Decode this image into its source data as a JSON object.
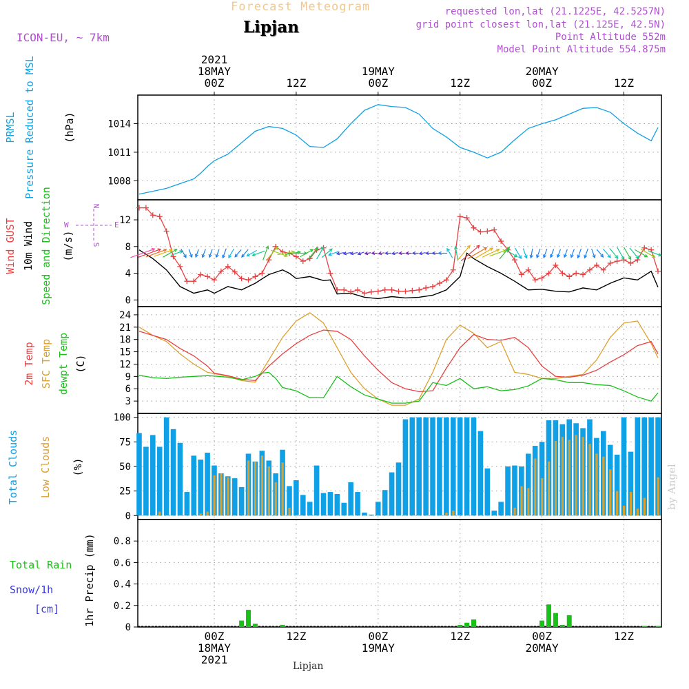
{
  "header": {
    "title": "Forecast Meteogram",
    "location": "Lipjan",
    "model": "ICON-EU, ~ 7km",
    "requested": "requested lon,lat (21.1225E, 42.5257N)",
    "grid": "grid point closest lon,lat (21.125E, 42.5N)",
    "point_alt": "Point Altitude 552m",
    "model_alt": "Model Point Altitude 554.875m"
  },
  "footer": {
    "location": "Lipjan",
    "credit": "by Angel"
  },
  "colors": {
    "blue": "#0fa0e6",
    "red": "#e84040",
    "orange": "#dca02e",
    "green": "#18c018",
    "purple": "#b050d0",
    "black": "#000000",
    "snow": "#3838e0",
    "title": "#f0c890"
  },
  "time_axis": {
    "top_labels": [
      {
        "lines": [
          "2021",
          "18MAY",
          "00Z"
        ],
        "h": 0
      },
      {
        "lines": [
          "12Z"
        ],
        "h": 12
      },
      {
        "lines": [
          "19MAY",
          "00Z"
        ],
        "h": 24
      },
      {
        "lines": [
          "12Z"
        ],
        "h": 36
      },
      {
        "lines": [
          "20MAY",
          "00Z"
        ],
        "h": 48
      },
      {
        "lines": [
          "12Z"
        ],
        "h": 60
      }
    ],
    "bottom_labels": [
      {
        "lines": [
          "00Z",
          "18MAY",
          "2021"
        ],
        "h": 0
      },
      {
        "lines": [
          "12Z"
        ],
        "h": 12
      },
      {
        "lines": [
          "00Z",
          "19MAY"
        ],
        "h": 24
      },
      {
        "lines": [
          "12Z"
        ],
        "h": 36
      },
      {
        "lines": [
          "00Z",
          "20MAY"
        ],
        "h": 48
      },
      {
        "lines": [
          "12Z"
        ],
        "h": 60
      }
    ],
    "range_hours": [
      -11.2,
      65.5
    ]
  },
  "panels": [
    {
      "id": "pressure",
      "labels": [
        {
          "text": "PRMSL",
          "color": "blue"
        },
        {
          "text": "Pressure Reduced to MSL",
          "color": "blue"
        }
      ],
      "unit": "(hPa)",
      "yticks": [
        "1008",
        "1011",
        "1014"
      ],
      "ylim": [
        1006,
        1017
      ]
    },
    {
      "id": "wind",
      "labels": [
        {
          "text": "Wind GUST",
          "color": "red"
        },
        {
          "text": "10m Wind",
          "color": "black"
        },
        {
          "text": "Speed and Direction",
          "color": "green"
        }
      ],
      "unit": "(m/s)",
      "yticks": [
        "0",
        "4",
        "8",
        "12"
      ],
      "ylim": [
        -1,
        15
      ],
      "compass": {
        "n": "N",
        "s": "S",
        "e": "E",
        "w": "W"
      }
    },
    {
      "id": "temp",
      "labels": [
        {
          "text": "2m Temp",
          "color": "red"
        },
        {
          "text": "SFC Temp",
          "color": "orange"
        },
        {
          "text": "dewpt Temp",
          "color": "green"
        }
      ],
      "unit": "(C)",
      "yticks": [
        "3",
        "6",
        "9",
        "12",
        "15",
        "18",
        "21",
        "24"
      ],
      "ylim": [
        0,
        26
      ]
    },
    {
      "id": "clouds",
      "labels": [
        {
          "text": "Total Clouds",
          "color": "blue"
        },
        {
          "text": "Low Clouds",
          "color": "orange"
        }
      ],
      "unit": "(%)",
      "yticks": [
        "0",
        "25",
        "50",
        "75",
        "100"
      ],
      "ylim": [
        -4,
        104
      ]
    },
    {
      "id": "precip",
      "labels": [],
      "unit": "1hr Precip (mm)",
      "yticks": [
        "0",
        "0.2",
        "0.4",
        "0.6",
        "0.8"
      ],
      "ylim": [
        0,
        1.0
      ],
      "side_labels": {
        "rain": "Total  Rain",
        "snow": "Snow/1h",
        "snow_unit": "[cm]"
      }
    }
  ],
  "chart_data": {
    "type": "line",
    "x_units": "hours from 2021-05-18 00Z",
    "pressure_hpa": {
      "x": [
        -11,
        -9,
        -7,
        -5,
        -3,
        -2,
        -1,
        0,
        2,
        4,
        6,
        8,
        10,
        12,
        14,
        16,
        18,
        20,
        22,
        24,
        26,
        28,
        30,
        32,
        34,
        36,
        38,
        40,
        42,
        44,
        46,
        48,
        50,
        52,
        54,
        56,
        58,
        60,
        62,
        64,
        65
      ],
      "values": [
        1006.6,
        1006.9,
        1007.2,
        1007.7,
        1008.2,
        1008.8,
        1009.5,
        1010.1,
        1010.8,
        1012.0,
        1013.2,
        1013.7,
        1013.5,
        1012.8,
        1011.6,
        1011.5,
        1012.4,
        1014.0,
        1015.4,
        1016.0,
        1015.8,
        1015.7,
        1015.0,
        1013.5,
        1012.6,
        1011.5,
        1011.0,
        1010.4,
        1011.0,
        1012.3,
        1013.5,
        1014.0,
        1014.4,
        1015.0,
        1015.6,
        1015.7,
        1015.2,
        1014.0,
        1013.0,
        1012.2,
        1013.6
      ]
    },
    "wind_speed_ms": {
      "x": [
        -11,
        -9,
        -7,
        -5,
        -3,
        -1,
        0,
        2,
        4,
        6,
        8,
        10,
        11,
        12,
        14,
        16,
        17,
        18,
        20,
        22,
        24,
        26,
        28,
        30,
        32,
        34,
        36,
        37,
        38,
        40,
        42,
        44,
        46,
        48,
        50,
        52,
        54,
        56,
        58,
        60,
        62,
        64,
        65
      ],
      "values": [
        7.5,
        6.2,
        4.5,
        2.0,
        1.0,
        1.5,
        1.0,
        2.0,
        1.5,
        2.5,
        3.8,
        4.5,
        4.0,
        3.2,
        3.5,
        2.9,
        3.0,
        0.9,
        1.0,
        0.4,
        0.2,
        0.5,
        0.3,
        0.4,
        0.7,
        1.5,
        3.5,
        7.0,
        6.2,
        5.0,
        4.0,
        2.8,
        1.5,
        1.6,
        1.3,
        1.2,
        1.8,
        1.5,
        2.5,
        3.3,
        3.0,
        4.3,
        1.9
      ]
    },
    "gust_ms": {
      "x": [
        -11,
        -10,
        -9,
        -8,
        -7,
        -6,
        -5,
        -4,
        -3,
        -2,
        -1,
        0,
        1,
        2,
        3,
        4,
        5,
        6,
        7,
        8,
        9,
        10,
        11,
        12,
        13,
        14,
        15,
        16,
        17,
        18,
        19,
        20,
        21,
        22,
        23,
        24,
        25,
        26,
        27,
        28,
        29,
        30,
        31,
        32,
        33,
        34,
        35,
        36,
        37,
        38,
        39,
        40,
        41,
        42,
        43,
        44,
        45,
        46,
        47,
        48,
        49,
        50,
        51,
        52,
        53,
        54,
        55,
        56,
        57,
        58,
        59,
        60,
        61,
        62,
        63,
        64,
        65
      ],
      "values": [
        13.8,
        13.8,
        12.7,
        12.5,
        10.3,
        6.5,
        5.0,
        2.8,
        2.8,
        3.8,
        3.5,
        3.0,
        4.3,
        5.0,
        4.2,
        3.2,
        3.0,
        3.5,
        4.0,
        6.0,
        8.0,
        7.2,
        7.0,
        6.5,
        5.8,
        6.2,
        7.5,
        7.8,
        4.0,
        1.5,
        1.5,
        1.2,
        1.5,
        1.0,
        1.2,
        1.3,
        1.5,
        1.5,
        1.3,
        1.3,
        1.4,
        1.5,
        1.8,
        2.0,
        2.5,
        3.0,
        4.5,
        12.5,
        12.3,
        10.8,
        10.2,
        10.3,
        10.5,
        8.8,
        7.5,
        6.0,
        3.8,
        4.5,
        3.0,
        3.3,
        4.0,
        5.2,
        4.0,
        3.5,
        4.0,
        3.8,
        4.5,
        5.2,
        4.5,
        5.5,
        5.8,
        6.0,
        5.5,
        6.0,
        7.8,
        7.5,
        4.3
      ]
    },
    "wind_direction": {
      "x": [
        -10.5,
        -9.5,
        -8.5,
        -7.5,
        -6.5,
        -5.5,
        -4.5,
        -3.5,
        -2.5,
        -1.5,
        -0.5,
        0.5,
        1.5,
        2.5,
        3.5,
        4.5,
        5.5,
        6.5,
        7.5,
        8.5,
        9.5,
        10.5,
        11.5,
        12.5,
        13.5,
        14.5,
        15.5,
        16.5,
        17.5,
        18.5,
        19.5,
        20.5,
        21.5,
        22.5,
        23.5,
        24.5,
        25.5,
        26.5,
        27.5,
        28.5,
        29.5,
        30.5,
        31.5,
        32.5,
        33.5,
        34.5,
        35.5,
        36.5,
        37.5,
        38.5,
        39.5,
        40.5,
        41.5,
        42.5,
        43.5,
        44.5,
        45.5,
        46.5,
        47.5,
        48.5,
        49.5,
        50.5,
        51.5,
        52.5,
        53.5,
        54.5,
        55.5,
        56.5,
        57.5,
        58.5,
        59.5,
        60.5,
        61.5,
        62.5,
        63.5,
        64.5
      ],
      "deg": [
        250,
        250,
        250,
        250,
        240,
        250,
        330,
        340,
        20,
        20,
        20,
        20,
        20,
        30,
        40,
        40,
        60,
        70,
        200,
        220,
        290,
        260,
        260,
        270,
        240,
        220,
        210,
        230,
        70,
        80,
        80,
        80,
        70,
        80,
        90,
        80,
        90,
        80,
        90,
        90,
        90,
        80,
        90,
        90,
        90,
        150,
        170,
        220,
        230,
        240,
        240,
        245,
        250,
        220,
        300,
        330,
        340,
        10,
        20,
        20,
        20,
        20,
        20,
        20,
        20,
        20,
        340,
        320,
        320,
        320,
        330,
        330,
        320,
        300,
        300,
        290
      ]
    },
    "temp_2m_c": {
      "x": [
        -11,
        -9,
        -7,
        -5,
        -3,
        -1,
        0,
        2,
        4,
        6,
        8,
        10,
        12,
        14,
        16,
        18,
        20,
        22,
        24,
        26,
        28,
        30,
        32,
        34,
        36,
        38,
        40,
        42,
        44,
        46,
        48,
        50,
        52,
        54,
        56,
        58,
        60,
        62,
        64,
        65
      ],
      "values": [
        20.0,
        19.0,
        18.0,
        15.8,
        14.0,
        11.5,
        9.8,
        9.2,
        8.3,
        8.0,
        11.5,
        14.5,
        17.0,
        19.0,
        20.3,
        20.0,
        18.0,
        14.0,
        10.5,
        7.5,
        6.0,
        5.3,
        5.5,
        11.0,
        16.0,
        19.2,
        18.0,
        17.8,
        18.5,
        16.0,
        11.5,
        9.0,
        8.8,
        9.3,
        10.5,
        12.5,
        14.3,
        16.5,
        17.5,
        14.5
      ]
    },
    "temp_sfc_c": {
      "x": [
        -11,
        -9,
        -7,
        -5,
        -3,
        -1,
        0,
        2,
        4,
        6,
        8,
        10,
        12,
        14,
        16,
        18,
        20,
        22,
        24,
        26,
        28,
        30,
        32,
        34,
        36,
        38,
        40,
        42,
        44,
        46,
        48,
        50,
        52,
        54,
        56,
        58,
        60,
        62,
        64,
        65
      ],
      "values": [
        21.0,
        19.0,
        17.5,
        14.5,
        12.0,
        10.0,
        9.7,
        9.0,
        8.0,
        7.6,
        13.0,
        18.5,
        22.5,
        24.5,
        22.0,
        16.0,
        10.0,
        6.0,
        3.5,
        2.0,
        2.0,
        3.5,
        10.0,
        18.0,
        21.5,
        19.5,
        16.0,
        17.5,
        10.0,
        9.5,
        8.5,
        8.5,
        9.0,
        9.5,
        13.0,
        18.5,
        22.0,
        22.5,
        17.0,
        13.5
      ]
    },
    "dewpoint_c": {
      "x": [
        -11,
        -9,
        -7,
        -5,
        -3,
        -1,
        0,
        2,
        4,
        6,
        7,
        8,
        9,
        10,
        12,
        14,
        16,
        18,
        20,
        22,
        24,
        26,
        28,
        30,
        32,
        34,
        36,
        38,
        40,
        42,
        44,
        46,
        48,
        50,
        52,
        54,
        56,
        58,
        60,
        62,
        64,
        65
      ],
      "values": [
        9.3,
        8.7,
        8.5,
        8.8,
        9.0,
        9.2,
        9.1,
        8.8,
        8.2,
        9.0,
        9.8,
        10.0,
        8.5,
        6.3,
        5.5,
        3.8,
        3.8,
        9.0,
        6.5,
        4.5,
        3.5,
        2.5,
        2.5,
        3.0,
        7.5,
        6.8,
        8.5,
        6.0,
        6.5,
        5.5,
        5.8,
        6.7,
        8.5,
        8.2,
        7.5,
        7.5,
        7.0,
        6.8,
        5.5,
        4.0,
        3.0,
        5.0
      ]
    },
    "clouds_total_pct": {
      "x": [
        -11,
        -10,
        -9,
        -8,
        -7,
        -6,
        -5,
        -4,
        -3,
        -2,
        -1,
        0,
        1,
        2,
        3,
        4,
        5,
        6,
        7,
        8,
        9,
        10,
        11,
        12,
        13,
        14,
        15,
        16,
        17,
        18,
        19,
        20,
        21,
        22,
        23,
        24,
        25,
        26,
        27,
        28,
        29,
        30,
        31,
        32,
        33,
        34,
        35,
        36,
        37,
        38,
        39,
        40,
        41,
        42,
        43,
        44,
        45,
        46,
        47,
        48,
        49,
        50,
        51,
        52,
        53,
        54,
        55,
        56,
        57,
        58,
        59,
        60,
        61,
        62,
        63,
        64,
        65
      ],
      "values": [
        84,
        70,
        82,
        70,
        100,
        88,
        74,
        24,
        61,
        57,
        64,
        51,
        43,
        40,
        38,
        29,
        63,
        55,
        66,
        56,
        43,
        67,
        30,
        36,
        21,
        14,
        51,
        23,
        24,
        22,
        13,
        34,
        24,
        3,
        1,
        14,
        26,
        44,
        54,
        98,
        100,
        100,
        100,
        100,
        100,
        100,
        100,
        100,
        100,
        100,
        86,
        48,
        5,
        14,
        50,
        51,
        50,
        63,
        71,
        75,
        97,
        97,
        93,
        98,
        94,
        89,
        98,
        79,
        86,
        72,
        62,
        100,
        65,
        100,
        100,
        100,
        100
      ]
    },
    "clouds_low_pct": {
      "x": [
        -11,
        -10,
        -9,
        -8,
        -7,
        -6,
        -5,
        -4,
        -3,
        -2,
        -1,
        0,
        1,
        2,
        3,
        4,
        5,
        6,
        7,
        8,
        9,
        10,
        11,
        12,
        13,
        14,
        15,
        16,
        17,
        18,
        19,
        20,
        21,
        22,
        23,
        24,
        25,
        26,
        27,
        28,
        29,
        30,
        31,
        32,
        33,
        34,
        35,
        36,
        37,
        38,
        39,
        40,
        41,
        42,
        43,
        44,
        45,
        46,
        47,
        48,
        49,
        50,
        51,
        52,
        53,
        54,
        55,
        56,
        57,
        58,
        59,
        60,
        61,
        62,
        63,
        64,
        65
      ],
      "values": [
        0,
        0,
        0,
        4,
        0,
        0,
        0,
        0,
        0,
        2,
        4,
        41,
        43,
        39,
        0,
        0,
        56,
        55,
        61,
        50,
        34,
        54,
        8,
        0,
        0,
        0,
        0,
        0,
        0,
        0,
        0,
        0,
        0,
        0,
        0,
        0,
        0,
        0,
        0,
        0,
        0,
        0,
        0,
        0,
        0,
        3,
        5,
        0,
        0,
        0,
        0,
        0,
        0,
        0,
        0,
        8,
        30,
        28,
        58,
        38,
        55,
        76,
        80,
        77,
        82,
        80,
        73,
        63,
        60,
        47,
        25,
        10,
        24,
        7,
        18,
        0,
        39
      ]
    },
    "precip_mm": {
      "x": [
        4,
        5,
        6,
        10,
        36,
        37,
        38,
        48,
        49,
        50,
        51,
        52,
        63,
        65
      ],
      "values": [
        0.06,
        0.16,
        0.03,
        0.02,
        0.02,
        0.04,
        0.07,
        0.06,
        0.21,
        0.13,
        0.02,
        0.11,
        0.01,
        0.01
      ]
    }
  }
}
